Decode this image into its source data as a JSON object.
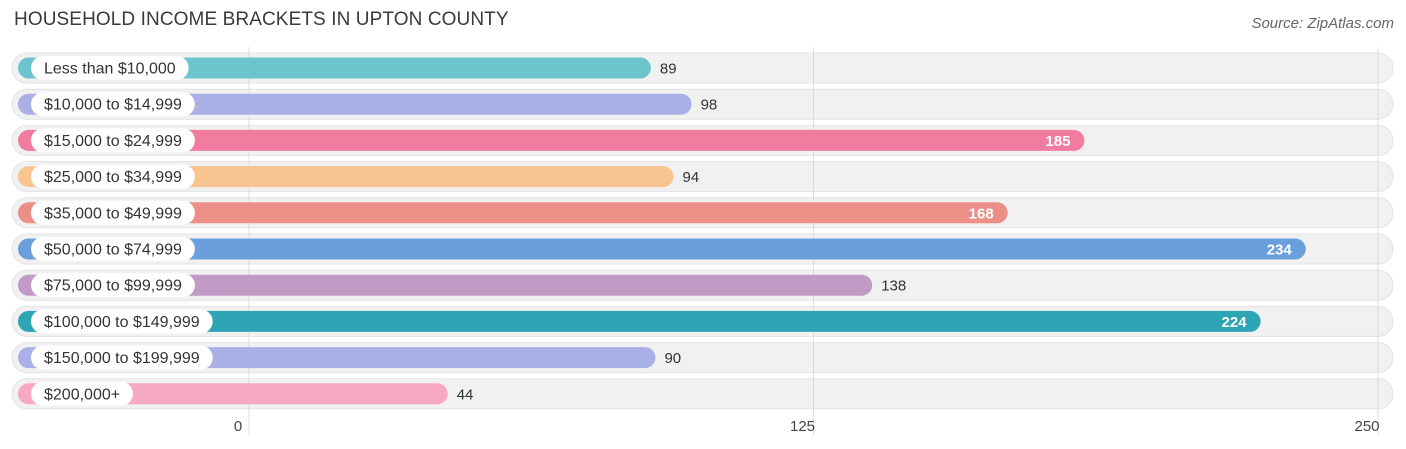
{
  "title": "HOUSEHOLD INCOME BRACKETS IN UPTON COUNTY",
  "source": "Source: ZipAtlas.com",
  "chart_data": {
    "type": "bar",
    "orientation": "horizontal",
    "title": "HOUSEHOLD INCOME BRACKETS IN UPTON COUNTY",
    "categories": [
      "Less than $10,000",
      "$10,000 to $14,999",
      "$15,000 to $24,999",
      "$25,000 to $34,999",
      "$35,000 to $49,999",
      "$50,000 to $74,999",
      "$75,000 to $99,999",
      "$100,000 to $149,999",
      "$150,000 to $199,999",
      "$200,000+"
    ],
    "values": [
      89,
      98,
      185,
      94,
      168,
      234,
      138,
      224,
      90,
      44
    ],
    "value_labels": [
      "89",
      "98",
      "185",
      "94",
      "168",
      "234",
      "138",
      "224",
      "90",
      "44"
    ],
    "colors": [
      "#6cc5cc",
      "#a8b0e6",
      "#f27ba0",
      "#f8c590",
      "#ec8f87",
      "#6a9fdb",
      "#c29ac6",
      "#2ea5b5",
      "#a8b0e6",
      "#f7a8c2"
    ],
    "xlim": [
      0,
      250
    ],
    "xticks": [
      0,
      125,
      250
    ],
    "xtick_labels": [
      "0",
      "125",
      "250"
    ],
    "grid": true
  }
}
